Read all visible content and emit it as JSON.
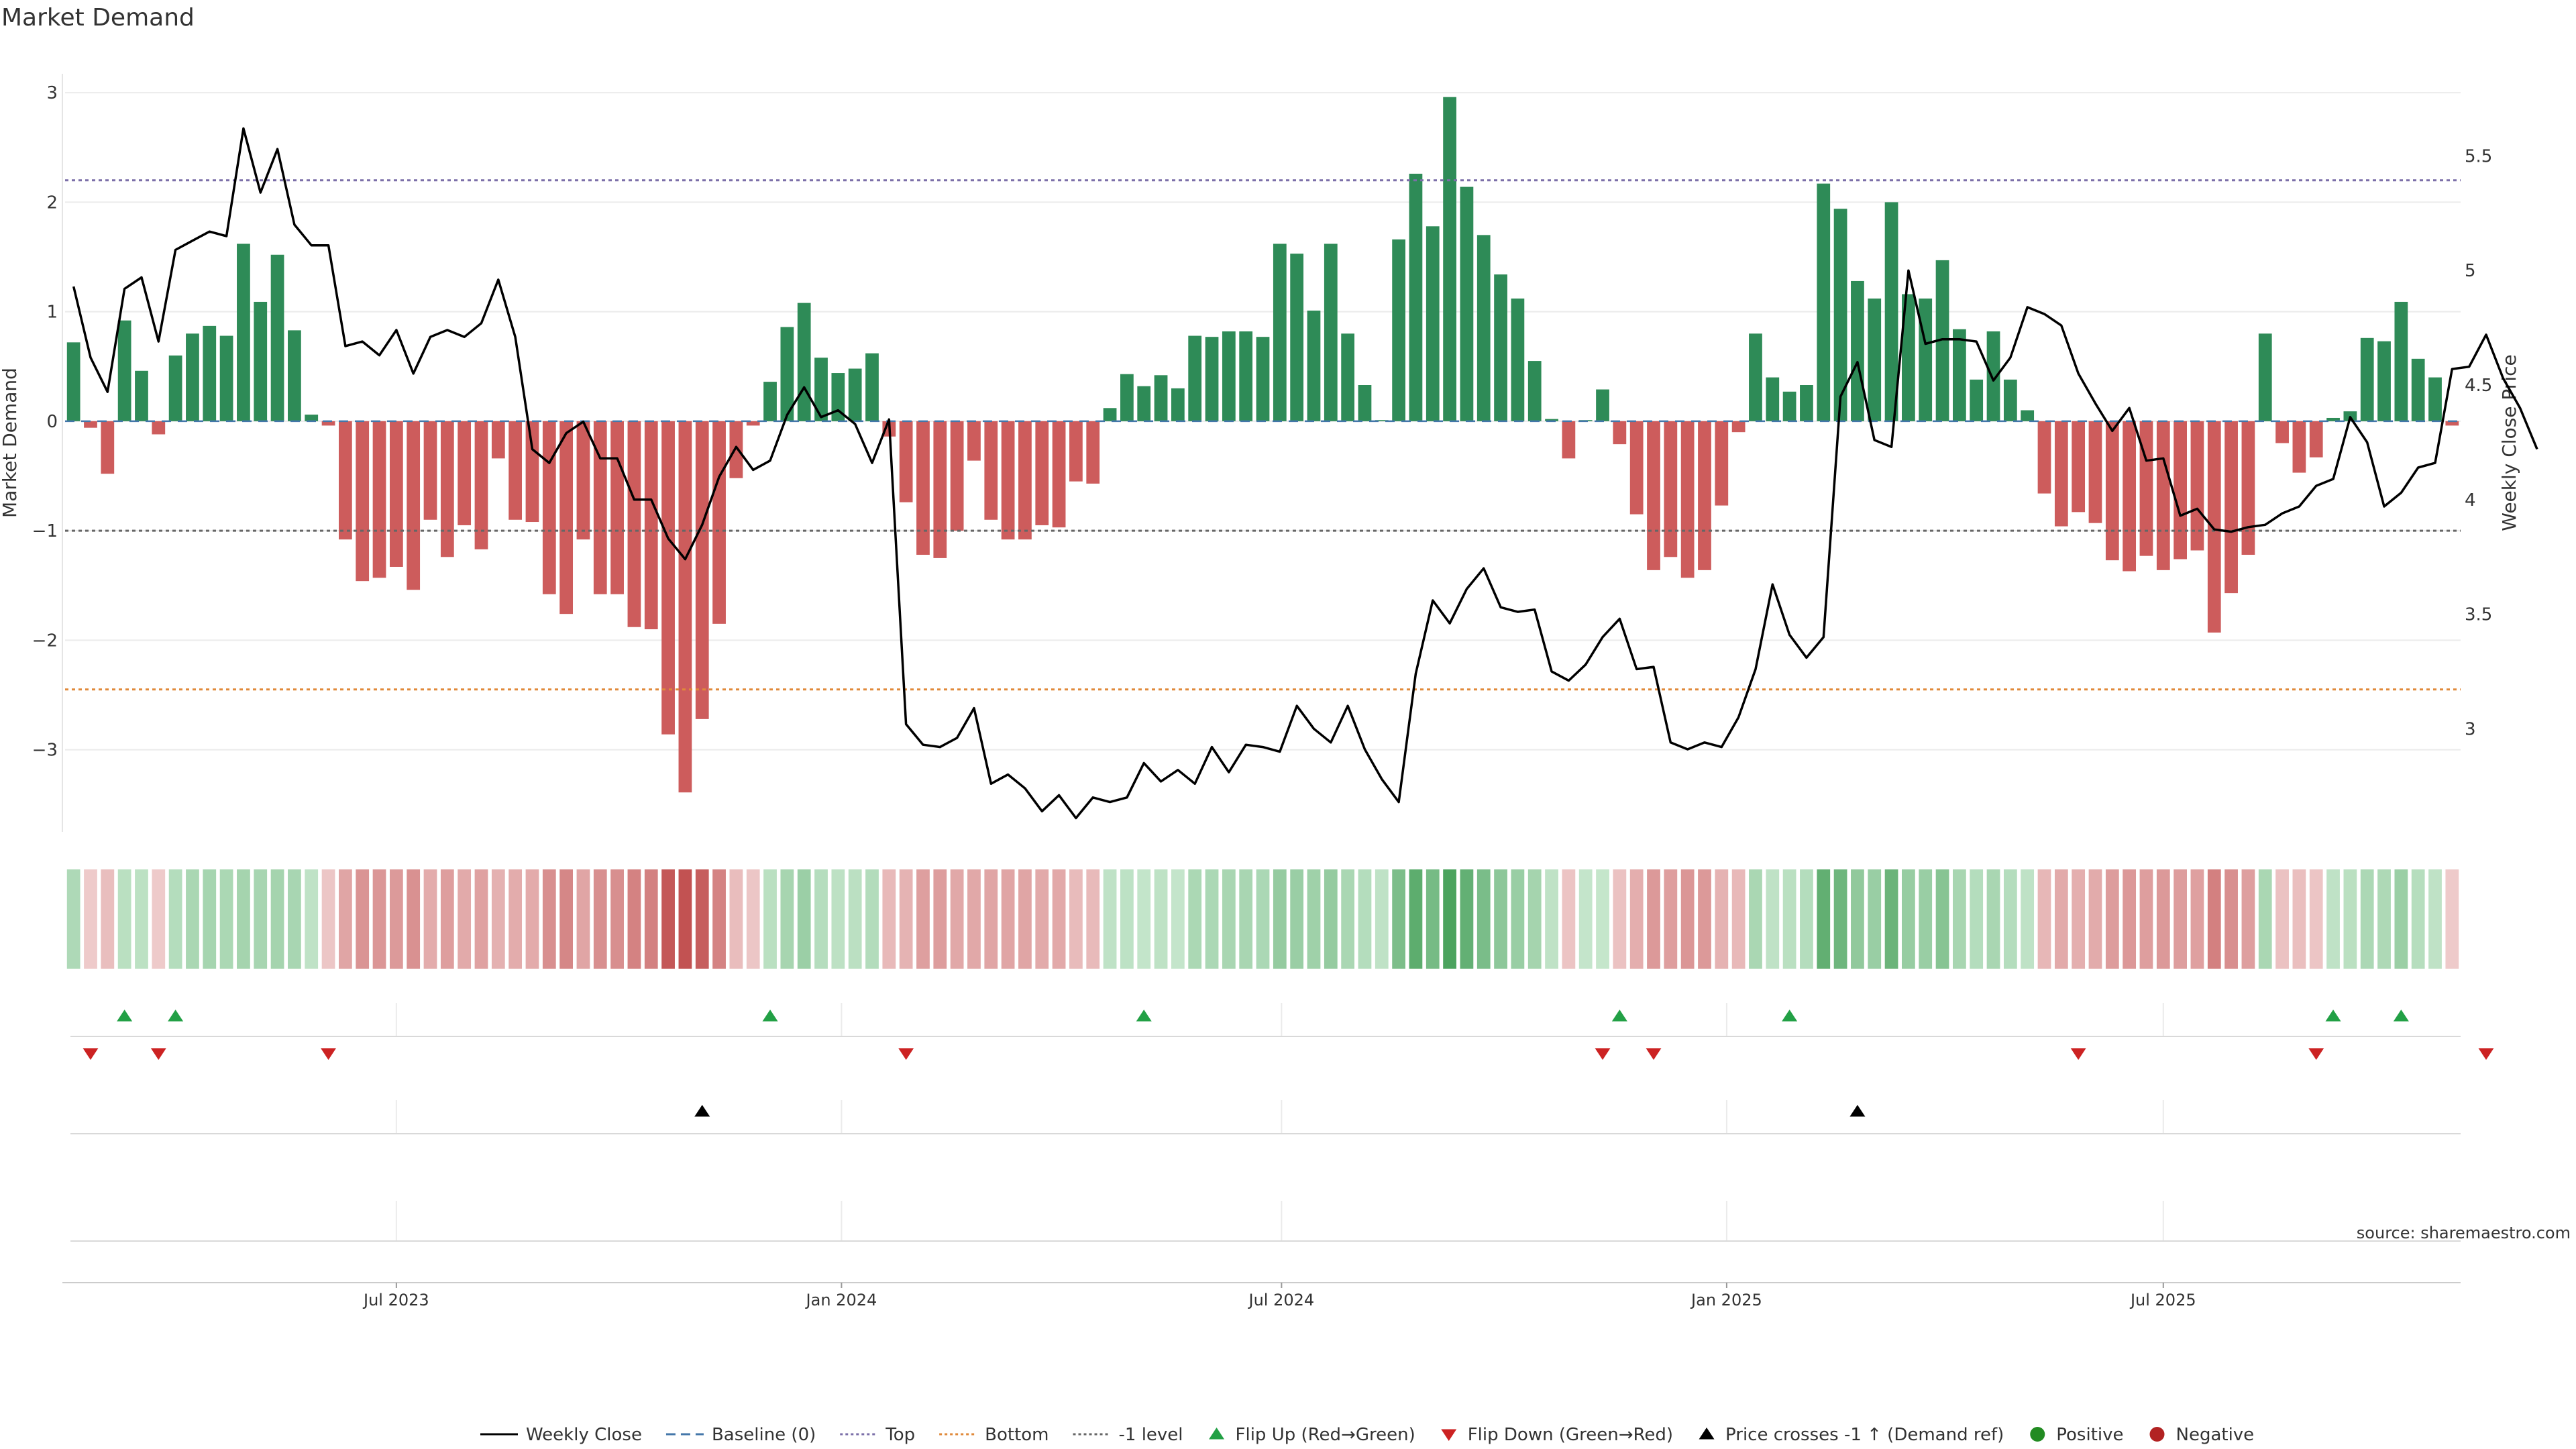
{
  "page": {
    "title": "Market Demand",
    "source": "source: sharemaestro.com"
  },
  "chart_data": {
    "type": "bar",
    "title": "Market Demand",
    "ylabel": "Market Demand",
    "y2label": "Weekly Close Price",
    "ylim": [
      -3.75,
      3.05
    ],
    "y2lim": [
      2.55,
      5.8
    ],
    "yticks": [
      3,
      2,
      1,
      0,
      -1,
      -2,
      -3
    ],
    "y2ticks": [
      5.5,
      5,
      4.5,
      4,
      3.5,
      3
    ],
    "xticks": [
      {
        "label": "Jul 2023",
        "index": 19.5
      },
      {
        "label": "Jan 2024",
        "index": 45.7
      },
      {
        "label": "Jul 2024",
        "index": 71.6
      },
      {
        "label": "Jan 2025",
        "index": 97.8
      },
      {
        "label": "Jul 2025",
        "index": 123.5
      }
    ],
    "reference_lines": [
      {
        "name": "Baseline (0)",
        "value": 0,
        "color": "#4477aa"
      },
      {
        "name": "Top",
        "value": 2.2,
        "color": "#7b6fa8"
      },
      {
        "name": "Bottom",
        "value": -2.45,
        "color": "#e0893a"
      },
      {
        "name": "-1 level",
        "value": -1,
        "color": "#666666"
      }
    ],
    "colors": {
      "positive": "#2e8b57",
      "negative": "#cd5c5c",
      "price_line": "#000000",
      "flip_up": "#22a045",
      "flip_down": "#cc2222",
      "cross": "#000000",
      "legend_positive": "#228B22",
      "legend_negative": "#B22222"
    },
    "series": [
      {
        "name": "Market Demand",
        "values": [
          0.72,
          -0.06,
          -0.48,
          0.92,
          0.46,
          -0.12,
          0.6,
          0.8,
          0.87,
          0.78,
          1.62,
          1.09,
          1.52,
          0.83,
          0.06,
          -0.04,
          -1.08,
          -1.46,
          -1.43,
          -1.33,
          -1.54,
          -0.9,
          -1.24,
          -0.95,
          -1.17,
          -0.34,
          -0.9,
          -0.92,
          -1.58,
          -1.76,
          -1.08,
          -1.58,
          -1.58,
          -1.88,
          -1.9,
          -2.86,
          -3.39,
          -2.72,
          -1.85,
          -0.52,
          -0.04,
          0.36,
          0.86,
          1.08,
          0.58,
          0.44,
          0.48,
          0.62,
          -0.14,
          -0.74,
          -1.22,
          -1.25,
          -1.0,
          -0.36,
          -0.9,
          -1.08,
          -1.08,
          -0.95,
          -0.97,
          -0.55,
          -0.57,
          0.12,
          0.43,
          0.32,
          0.42,
          0.3,
          0.78,
          0.77,
          0.82,
          0.82,
          0.77,
          1.62,
          1.53,
          1.01,
          1.62,
          0.8,
          0.33,
          0.01,
          1.66,
          2.26,
          1.78,
          2.96,
          2.14,
          1.7,
          1.34,
          1.12,
          0.55,
          0.02,
          -0.34,
          0.01,
          0.29,
          -0.21,
          -0.85,
          -1.36,
          -1.24,
          -1.43,
          -1.36,
          -0.77,
          -0.1,
          0.8,
          0.4,
          0.27,
          0.33,
          2.17,
          1.94,
          1.28,
          1.12,
          2.0,
          1.16,
          1.12,
          1.47,
          0.84,
          0.38,
          0.82,
          0.38,
          0.1,
          -0.66,
          -0.96,
          -0.83,
          -0.93,
          -1.27,
          -1.37,
          -1.23,
          -1.36,
          -1.26,
          -1.18,
          -1.93,
          -1.57,
          -1.22,
          0.8,
          -0.2,
          -0.47,
          -0.33,
          0.03,
          0.09,
          0.76,
          0.73,
          1.09,
          0.57,
          0.4,
          -0.04
        ]
      },
      {
        "name": "Weekly Close",
        "values": [
          4.93,
          4.62,
          4.47,
          4.92,
          4.97,
          4.69,
          5.09,
          5.13,
          5.17,
          5.15,
          5.62,
          5.34,
          5.53,
          5.2,
          5.11,
          5.11,
          4.67,
          4.69,
          4.63,
          4.74,
          4.55,
          4.71,
          4.74,
          4.71,
          4.77,
          4.96,
          4.71,
          4.22,
          4.16,
          4.29,
          4.34,
          4.18,
          4.18,
          4.0,
          4.0,
          3.83,
          3.74,
          3.89,
          4.1,
          4.23,
          4.13,
          4.17,
          4.37,
          4.49,
          4.36,
          4.39,
          4.33,
          4.16,
          4.35,
          3.02,
          2.93,
          2.92,
          2.96,
          3.09,
          2.76,
          2.8,
          2.74,
          2.64,
          2.71,
          2.61,
          2.7,
          2.68,
          2.7,
          2.85,
          2.77,
          2.82,
          2.76,
          2.92,
          2.81,
          2.93,
          2.92,
          2.9,
          3.1,
          3.0,
          2.94,
          3.1,
          2.91,
          2.78,
          2.68,
          3.24,
          3.56,
          3.46,
          3.61,
          3.7,
          3.53,
          3.51,
          3.52,
          3.25,
          3.21,
          3.28,
          3.4,
          3.48,
          3.26,
          3.27,
          2.94,
          2.91,
          2.94,
          2.92,
          3.05,
          3.26,
          3.63,
          3.41,
          3.31,
          3.4,
          4.45,
          4.6,
          4.26,
          4.23,
          5.0,
          4.68,
          4.7,
          4.7,
          4.69,
          4.52,
          4.62,
          4.84,
          4.81,
          4.76,
          4.55,
          4.42,
          4.3,
          4.4,
          4.17,
          4.18,
          3.93,
          3.96,
          3.87,
          3.86,
          3.88,
          3.89,
          3.94,
          3.97,
          4.06,
          4.09,
          4.36,
          4.25,
          3.97,
          4.03,
          4.14,
          4.16,
          4.57,
          4.58,
          4.72,
          4.53,
          4.4,
          4.22
        ]
      }
    ],
    "heat_strip": [
      0.72,
      -0.2,
      -0.48,
      0.5,
      0.46,
      -0.2,
      0.6,
      0.8,
      0.87,
      0.78,
      0.9,
      0.85,
      0.9,
      0.83,
      0.4,
      -0.3,
      -1.08,
      -1.46,
      -1.43,
      -1.33,
      -1.54,
      -0.9,
      -1.24,
      -0.95,
      -1.17,
      -0.8,
      -0.9,
      -0.92,
      -1.58,
      -1.76,
      -1.08,
      -1.58,
      -1.58,
      -1.88,
      -1.9,
      -2.86,
      -3.39,
      -2.72,
      -1.85,
      -0.52,
      -0.3,
      0.5,
      0.86,
      1.08,
      0.58,
      0.44,
      0.48,
      0.62,
      -0.6,
      -0.74,
      -1.22,
      -1.25,
      -1.0,
      -1.0,
      -1.08,
      -1.08,
      -1.08,
      -0.95,
      -0.97,
      -0.55,
      -0.57,
      0.4,
      0.43,
      0.32,
      0.42,
      0.3,
      0.78,
      0.77,
      0.82,
      0.82,
      0.77,
      1.2,
      1.1,
      1.01,
      1.2,
      0.8,
      0.6,
      0.4,
      1.66,
      2.26,
      1.78,
      2.96,
      2.14,
      1.7,
      1.34,
      1.12,
      0.9,
      0.4,
      -0.34,
      0.3,
      0.29,
      -0.4,
      -0.85,
      -1.36,
      -1.24,
      -1.43,
      -1.36,
      -0.77,
      -0.6,
      0.8,
      0.4,
      0.5,
      0.6,
      2.17,
      1.94,
      1.28,
      1.12,
      2.0,
      1.16,
      1.12,
      1.47,
      0.84,
      0.6,
      0.82,
      0.6,
      0.4,
      -0.66,
      -0.96,
      -0.83,
      -0.93,
      -1.27,
      -1.37,
      -1.23,
      -1.36,
      -1.26,
      -1.18,
      -1.93,
      -1.57,
      -1.22,
      0.8,
      -0.4,
      -0.47,
      -0.33,
      0.4,
      0.5,
      0.76,
      0.73,
      1.09,
      0.57,
      0.4,
      -0.2
    ],
    "markers": {
      "flip_up": [
        3,
        6,
        41,
        63,
        91,
        101,
        133,
        137
      ],
      "flip_down": [
        1,
        5,
        15,
        49,
        90,
        93,
        118,
        132,
        142
      ],
      "price_crosses": [
        37,
        105
      ]
    },
    "legend": [
      {
        "label": "Weekly Close",
        "kind": "line",
        "color": "#000000"
      },
      {
        "label": "Baseline (0)",
        "kind": "dash",
        "color": "#4477aa"
      },
      {
        "label": "Top",
        "kind": "dot",
        "color": "#7b6fa8"
      },
      {
        "label": "Bottom",
        "kind": "dot",
        "color": "#e0893a"
      },
      {
        "label": "-1 level",
        "kind": "dot",
        "color": "#666666"
      },
      {
        "label": "Flip Up (Red→Green)",
        "kind": "tri-up",
        "color": "#22a045"
      },
      {
        "label": "Flip Down (Green→Red)",
        "kind": "tri-down",
        "color": "#cc2222"
      },
      {
        "label": "Price crosses -1 ↑ (Demand ref)",
        "kind": "tri-up",
        "color": "#000000"
      },
      {
        "label": "Positive",
        "kind": "circle",
        "color": "#228B22"
      },
      {
        "label": "Negative",
        "kind": "circle",
        "color": "#B22222"
      }
    ]
  }
}
